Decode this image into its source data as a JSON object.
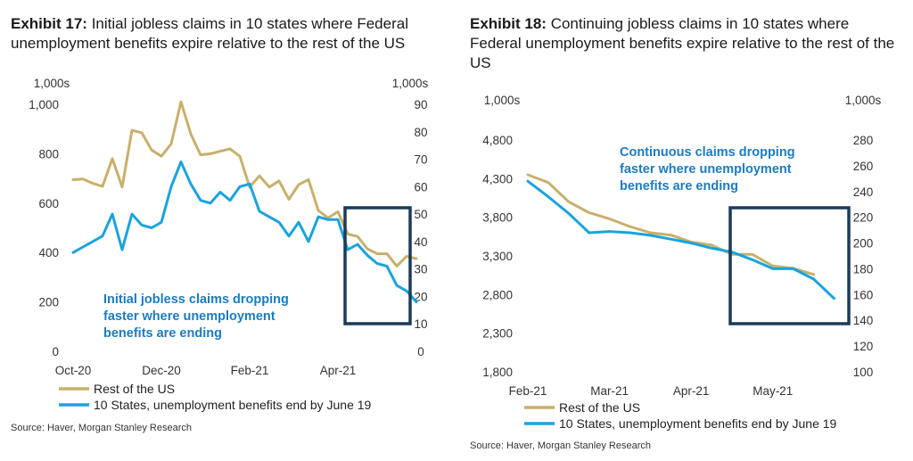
{
  "colors": {
    "rest": "#c8b06b",
    "states": "#1aa3dd",
    "box": "#1b3a5c",
    "annot": "#1b7cc1"
  },
  "left": {
    "prefix": "Exhibit 17:",
    "title": "Initial jobless claims in 10 states where Federal unemployment benefits expire relative to the rest of the US",
    "left_unit": "1,000s",
    "right_unit": "1,000s",
    "annotation": [
      "Initial jobless claims dropping",
      "faster where unemployment",
      "benefits are ending"
    ],
    "legend": [
      "Rest of the US",
      "10 States, unemployment benefits end by June 19"
    ],
    "source": "Source: Haver, Morgan Stanley Research"
  },
  "right": {
    "prefix": "Exhibit 18:",
    "title": "Continuing jobless claims in 10 states where Federal unemployment benefits expire relative to the rest of the US",
    "left_unit": "1,000s",
    "right_unit": "1,000s",
    "annotation": [
      "Continuous claims dropping",
      "faster where unemployment",
      "benefits are ending"
    ],
    "legend": [
      "Rest of the US",
      "10 States, unemployment benefits end by June 19"
    ],
    "source": "Source: Haver, Morgan Stanley Research"
  },
  "chart_data": [
    {
      "type": "line",
      "title": "Exhibit 17: Initial jobless claims in 10 states where Federal unemployment benefits expire relative to the rest of the US",
      "x_ticks": [
        "Oct-20",
        "Dec-20",
        "Feb-21",
        "Apr-21"
      ],
      "x_tick_index": [
        0,
        9,
        18,
        27
      ],
      "y_left": {
        "label": "1,000s",
        "ylim": [
          0,
          1000
        ],
        "ticks": [
          "0",
          "200",
          "400",
          "600",
          "800",
          "1,000"
        ],
        "tick_values": [
          0,
          200,
          400,
          600,
          800,
          1000
        ]
      },
      "y_right": {
        "label": "1,000s",
        "ylim": [
          0,
          90
        ],
        "ticks": [
          "0",
          "10",
          "20",
          "30",
          "40",
          "50",
          "60",
          "70",
          "80",
          "90"
        ],
        "tick_values": [
          0,
          10,
          20,
          30,
          40,
          50,
          60,
          70,
          80,
          90
        ]
      },
      "series": [
        {
          "name": "Rest of the US",
          "axis": "left",
          "values": [
            695,
            698,
            680,
            668,
            780,
            665,
            895,
            885,
            815,
            790,
            840,
            1010,
            880,
            795,
            800,
            810,
            820,
            790,
            665,
            710,
            665,
            690,
            615,
            675,
            695,
            570,
            540,
            565,
            475,
            465,
            415,
            395,
            395,
            345,
            385,
            375
          ]
        },
        {
          "name": "10 States, unemployment benefits end by June 19",
          "axis": "right",
          "values": [
            36,
            38,
            40,
            42,
            50,
            37,
            50,
            46,
            45,
            47,
            60,
            69,
            61,
            55,
            54,
            58,
            55,
            60,
            61,
            51,
            49,
            47,
            42,
            47,
            40,
            49,
            48,
            48,
            37,
            39,
            35,
            32,
            31,
            24,
            22,
            18
          ]
        }
      ]
    },
    {
      "type": "line",
      "title": "Exhibit 18: Continuing jobless claims in 10 states where Federal unemployment benefits expire relative to the rest of the US",
      "x_ticks": [
        "Feb-21",
        "Mar-21",
        "Apr-21",
        "May-21"
      ],
      "x_tick_index": [
        0,
        4,
        8,
        12
      ],
      "y_left": {
        "label": "1,000s",
        "ylim": [
          1800,
          4800
        ],
        "ticks": [
          "1,800",
          "2,300",
          "2,800",
          "3,300",
          "3,800",
          "4,300",
          "4,800"
        ],
        "tick_values": [
          1800,
          2300,
          2800,
          3300,
          3800,
          4300,
          4800
        ]
      },
      "y_right": {
        "label": "1,000s",
        "ylim": [
          100,
          280
        ],
        "ticks": [
          "100",
          "120",
          "140",
          "160",
          "180",
          "200",
          "220",
          "240",
          "260",
          "280"
        ],
        "tick_values": [
          100,
          120,
          140,
          160,
          180,
          200,
          220,
          240,
          260,
          280
        ]
      },
      "series": [
        {
          "name": "Rest of the US",
          "axis": "left",
          "values": [
            4350,
            4250,
            4000,
            3860,
            3780,
            3680,
            3600,
            3570,
            3480,
            3440,
            3320,
            3320,
            3170,
            3140,
            3060
          ]
        },
        {
          "name": "10 States, unemployment benefits end by June 19",
          "axis": "right",
          "values": [
            248,
            236,
            223,
            208,
            209,
            208,
            206,
            203,
            200,
            196,
            193,
            187,
            180,
            180,
            172,
            157
          ]
        }
      ]
    }
  ]
}
